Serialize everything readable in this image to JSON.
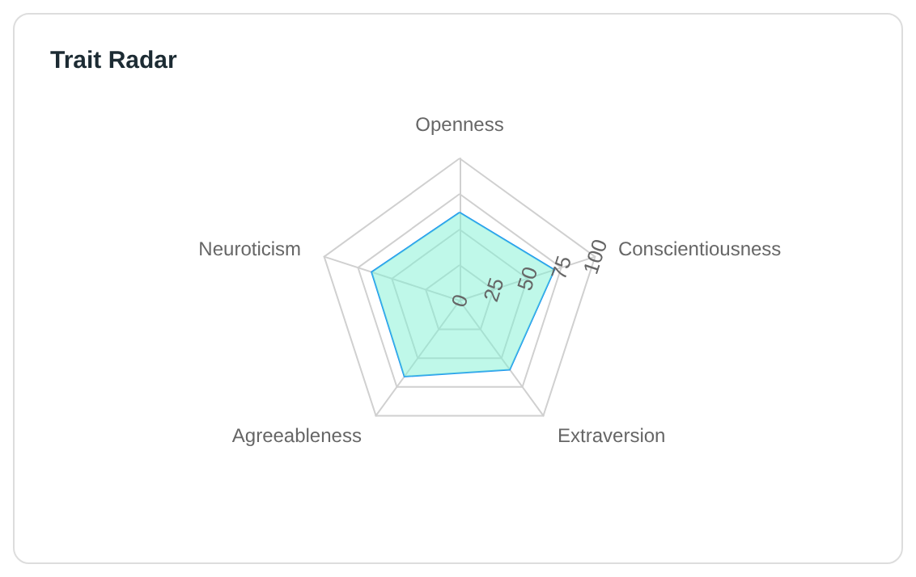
{
  "chart_data": {
    "type": "radar",
    "title": "Trait Radar",
    "categories": [
      "Openness",
      "Conscientiousness",
      "Extraversion",
      "Agreeableness",
      "Neuroticism"
    ],
    "series": [
      {
        "color": "#1e96f0",
        "values": [
          62,
          70,
          60,
          66,
          65
        ]
      }
    ],
    "ylim": [
      0,
      100
    ],
    "yticks": [
      0,
      25,
      50,
      75,
      100
    ]
  }
}
